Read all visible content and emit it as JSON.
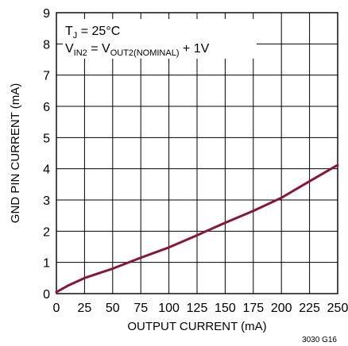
{
  "chart_data": {
    "type": "line",
    "title": "",
    "xlabel": "OUTPUT CURRENT (mA)",
    "ylabel": "GND PIN CURRENT (mA)",
    "xlim": [
      0,
      250
    ],
    "ylim": [
      0,
      9
    ],
    "x_ticks": [
      0,
      25,
      50,
      75,
      100,
      125,
      150,
      175,
      200,
      225,
      250
    ],
    "y_ticks": [
      0,
      1,
      2,
      3,
      4,
      5,
      6,
      7,
      8,
      9
    ],
    "grid": true,
    "conditions": {
      "line1": {
        "t": "T",
        "t_sub": "J",
        "rest": " = 25°C"
      },
      "line2": {
        "v": "V",
        "v_sub": "IN2",
        "eq": " = V",
        "eq_sub": "OUT2(NOMINAL)",
        "rest": " + 1V"
      }
    },
    "figure_id": "3030 G16",
    "series_color": "#8b1538",
    "series": [
      {
        "x": [
          0,
          10,
          25,
          50,
          75,
          100,
          125,
          150,
          175,
          200,
          225,
          250
        ],
        "values": [
          0.05,
          0.25,
          0.5,
          0.8,
          1.15,
          1.48,
          1.87,
          2.27,
          2.65,
          3.07,
          3.6,
          4.12
        ]
      }
    ]
  }
}
